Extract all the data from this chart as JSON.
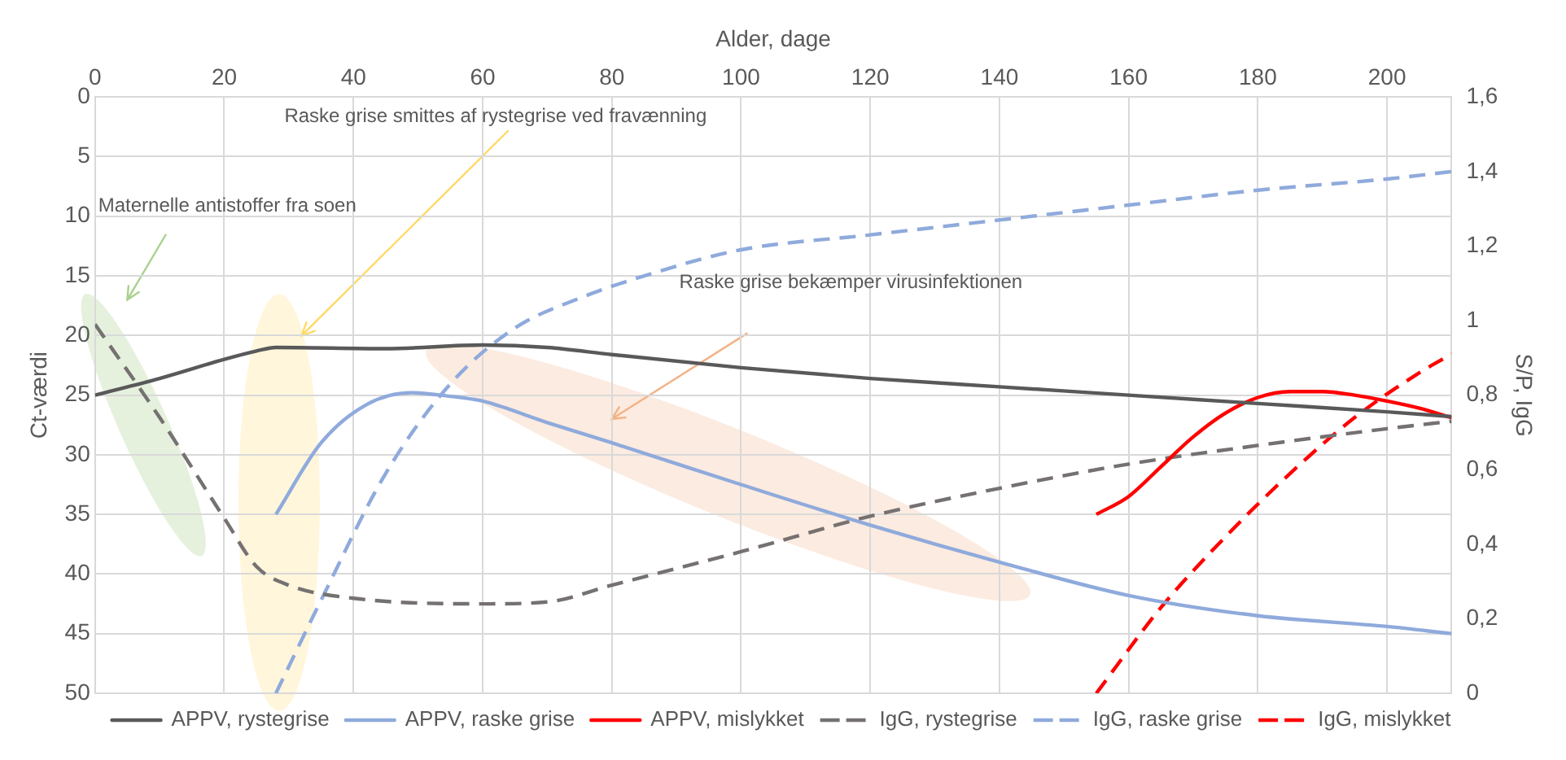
{
  "chart_data": {
    "type": "line",
    "xlabel": "Alder, dage",
    "ylabel": "Ct-værdi",
    "y2label": "S/P, IgG",
    "xlim": [
      0,
      210
    ],
    "xticks": [
      0,
      20,
      40,
      60,
      80,
      100,
      120,
      140,
      160,
      180,
      200
    ],
    "ylim": [
      50,
      0
    ],
    "yticks": [
      0,
      5,
      10,
      15,
      20,
      25,
      30,
      35,
      40,
      45,
      50
    ],
    "y2lim": [
      0,
      1.6
    ],
    "y2ticks": [
      0,
      {
        "value": 0.2,
        "label": "0,2"
      },
      {
        "value": 0.4,
        "label": "0,4"
      },
      {
        "value": 0.6,
        "label": "0,6"
      },
      {
        "value": 0.8,
        "label": "0,8"
      },
      1,
      {
        "value": 1.2,
        "label": "1,2"
      },
      {
        "value": 1.4,
        "label": "1,4"
      },
      {
        "value": 1.6,
        "label": "1,6"
      }
    ],
    "grid": true,
    "legend": "bottom",
    "marker": "none",
    "annotations": [
      "Raske grise smittes af rystegrise ved fravænning",
      "Maternelle antistoffer fra soen",
      "Raske grise bekæmper virusinfektionen"
    ],
    "series": [
      {
        "name": "APPV, rystegrise",
        "color": "#595959",
        "line_style": "solid",
        "x": [
          0,
          10,
          20,
          25,
          28,
          45,
          60,
          70,
          80,
          100,
          120,
          140,
          160,
          180,
          200,
          210
        ],
        "values": [
          25,
          23.6,
          22,
          21.3,
          21,
          21.1,
          20.8,
          21,
          21.6,
          22.7,
          23.6,
          24.3,
          25,
          25.7,
          26.4,
          26.8
        ]
      },
      {
        "name": "APPV, raske grise",
        "color": "#8faadc",
        "line_style": "solid",
        "x": [
          28,
          35,
          42,
          49,
          55,
          60,
          70,
          80,
          100,
          120,
          140,
          160,
          180,
          200,
          210
        ],
        "values": [
          35,
          29,
          25.8,
          24.8,
          25.1,
          25.5,
          27.3,
          29,
          32.5,
          35.9,
          39,
          41.8,
          43.5,
          44.4,
          45
        ]
      },
      {
        "name": "APPV, mislykket",
        "color": "#ff0000",
        "line_style": "solid",
        "x": [
          155,
          160,
          165,
          170,
          175,
          180,
          185,
          190,
          195,
          200,
          205,
          210
        ],
        "values": [
          35,
          33.5,
          31,
          28.5,
          26.5,
          25.2,
          24.7,
          24.7,
          25,
          25.5,
          26.1,
          26.9
        ]
      },
      {
        "name": "IgG, rystegrise",
        "color": "#767171",
        "line_style": "dashed",
        "axis": "y2",
        "x": [
          0,
          10,
          20,
          25,
          30,
          40,
          60,
          70,
          80,
          100,
          120,
          140,
          160,
          180,
          200,
          210
        ],
        "values": [
          0.99,
          0.74,
          0.47,
          0.34,
          0.29,
          0.255,
          0.24,
          0.245,
          0.29,
          0.38,
          0.475,
          0.55,
          0.615,
          0.665,
          0.71,
          0.73
        ]
      },
      {
        "name": "IgG, raske grise",
        "color": "#8faadc",
        "line_style": "dashed",
        "axis": "y2",
        "x": [
          28,
          35,
          45,
          55,
          65,
          75,
          85,
          100,
          120,
          140,
          160,
          180,
          200,
          210
        ],
        "values": [
          0,
          0.25,
          0.59,
          0.83,
          0.98,
          1.06,
          1.12,
          1.19,
          1.23,
          1.27,
          1.31,
          1.35,
          1.38,
          1.4
        ]
      },
      {
        "name": "IgG, mislykket",
        "color": "#ff0000",
        "line_style": "dashed",
        "axis": "y2",
        "x": [
          155,
          165,
          175,
          185,
          195,
          205,
          210
        ],
        "values": [
          0,
          0.23,
          0.42,
          0.59,
          0.74,
          0.86,
          0.91
        ]
      }
    ]
  }
}
